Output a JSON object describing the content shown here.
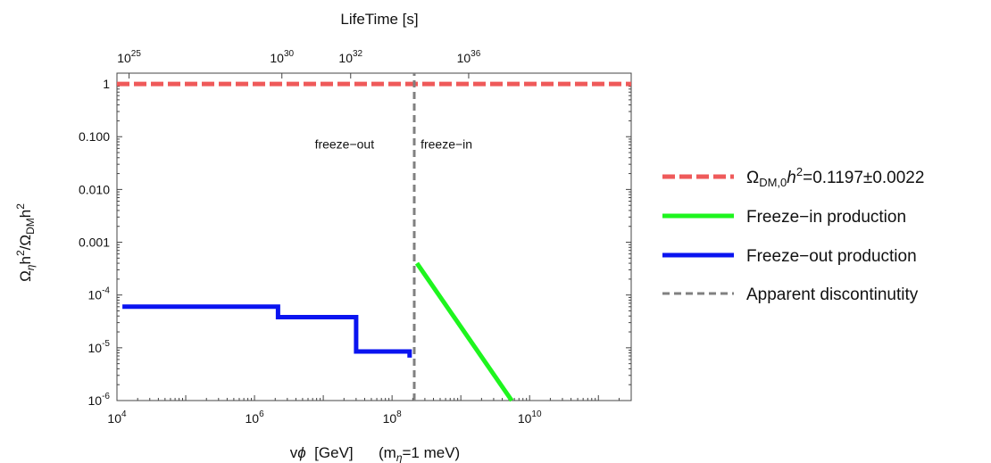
{
  "chart_data": {
    "type": "line",
    "log_x": true,
    "log_y": true,
    "xlim": [
      10000.0,
      300000000000.0
    ],
    "ylim": [
      1e-06,
      1.6
    ],
    "x_axis_label": {
      "main": "v",
      "phi": "ϕ",
      "unit": "  [GeV]      (m",
      "sub": "η",
      "tail": "=1 meV)"
    },
    "top_axis_label": "LifeTime  [s]",
    "y_axis_label": {
      "omega1": "Ω",
      "sub1": "η",
      "h1": "h",
      "sup1": "2",
      "slash": "/Ω",
      "sub2": "DM",
      "h2": "h",
      "sup2": "2"
    },
    "x_ticks": [
      {
        "value": 10000.0,
        "base": "10",
        "exp": "4"
      },
      {
        "value": 1000000.0,
        "base": "10",
        "exp": "6"
      },
      {
        "value": 100000000.0,
        "base": "10",
        "exp": "8"
      },
      {
        "value": 10000000000.0,
        "base": "10",
        "exp": "10"
      }
    ],
    "top_ticks": [
      {
        "value": 15000.0,
        "base": "10",
        "exp": "25"
      },
      {
        "value": 2500000.0,
        "base": "10",
        "exp": "30"
      },
      {
        "value": 25000000.0,
        "base": "10",
        "exp": "32"
      },
      {
        "value": 1300000000.0,
        "base": "10",
        "exp": "36"
      }
    ],
    "y_ticks": [
      {
        "value": 1,
        "label": "1"
      },
      {
        "value": 0.1,
        "label": "0.100"
      },
      {
        "value": 0.01,
        "label": "0.010"
      },
      {
        "value": 0.001,
        "label": "0.001"
      },
      {
        "value": 0.0001,
        "base": "10",
        "exp": "-4"
      },
      {
        "value": 1e-05,
        "base": "10",
        "exp": "-5"
      },
      {
        "value": 1e-06,
        "base": "10",
        "exp": "-6"
      }
    ],
    "annotations": [
      {
        "text": "freeze−out",
        "x": 55000000.0,
        "y": 0.06
      },
      {
        "text": "freeze−in",
        "x": 260000000.0,
        "y": 0.06
      }
    ],
    "series": [
      {
        "key": "dm",
        "name": "Ω",
        "name_sub": "DM,0",
        "name_h": "h",
        "name_sup": "2",
        "name_tail": "=0.1197±0.0022",
        "color": "#ef5a5a",
        "style": "dashed",
        "points": [
          [
            10000.0,
            1.0
          ],
          [
            300000000000.0,
            1.0
          ]
        ]
      },
      {
        "key": "freeze_in",
        "name": "Freeze−in production",
        "color": "#1ef51e",
        "style": "solid",
        "points": [
          [
            230000000.0,
            0.0004
          ],
          [
            5500000000.0,
            1e-06
          ]
        ]
      },
      {
        "key": "freeze_out",
        "name": "Freeze−out production",
        "color": "#0a14f0",
        "style": "solid",
        "points": [
          [
            12000.0,
            6e-05
          ],
          [
            2200000.0,
            6e-05
          ],
          [
            2200000.0,
            3.8e-05
          ],
          [
            30000000.0,
            3.8e-05
          ],
          [
            30000000.0,
            8.5e-06
          ],
          [
            180000000.0,
            8.5e-06
          ],
          [
            180000000.0,
            6.5e-06
          ]
        ]
      },
      {
        "key": "discontinuity",
        "name": "Apparent discontinutity",
        "color": "#808080",
        "style": "dashed",
        "points": [
          [
            210000000.0,
            1e-06
          ],
          [
            210000000.0,
            1.6
          ]
        ]
      }
    ]
  }
}
